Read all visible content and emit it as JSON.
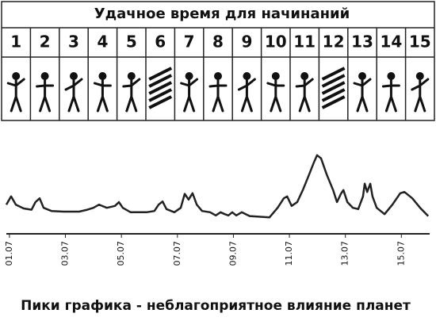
{
  "header": {
    "title": "Удачное время для начинаний"
  },
  "table": {
    "numbers": [
      1,
      2,
      3,
      4,
      5,
      6,
      7,
      8,
      9,
      10,
      11,
      12,
      13,
      14,
      15
    ]
  },
  "chart_data": {
    "type": "line",
    "color": "#222222",
    "caption": "Пики графика - неблагоприятное влияние планет",
    "xlim": [
      0.72,
      16.18
    ],
    "ylim": [
      0,
      100
    ],
    "xticks": [
      {
        "value": 1,
        "label": "01.07"
      },
      {
        "value": 3,
        "label": "03.07"
      },
      {
        "value": 5,
        "label": "05.07"
      },
      {
        "value": 7,
        "label": "07.07"
      },
      {
        "value": 9,
        "label": "09.07"
      },
      {
        "value": 11,
        "label": "11.07"
      },
      {
        "value": 13,
        "label": "13.07"
      },
      {
        "value": 15,
        "label": "15.07"
      }
    ],
    "x": [
      0.89,
      1.06,
      1.23,
      1.51,
      1.79,
      1.93,
      2.08,
      2.22,
      2.5,
      2.93,
      3.49,
      3.78,
      4.0,
      4.2,
      4.48,
      4.77,
      4.91,
      5.05,
      5.33,
      5.9,
      6.18,
      6.33,
      6.47,
      6.61,
      6.89,
      7.12,
      7.26,
      7.4,
      7.54,
      7.69,
      7.88,
      8.17,
      8.37,
      8.54,
      8.69,
      8.82,
      8.96,
      9.1,
      9.3,
      9.58,
      10.29,
      10.58,
      10.8,
      10.92,
      11.08,
      11.28,
      11.48,
      11.71,
      11.88,
      11.99,
      12.13,
      12.33,
      12.56,
      12.7,
      12.84,
      12.93,
      13.07,
      13.27,
      13.46,
      13.63,
      13.69,
      13.78,
      13.89,
      13.97,
      14.12,
      14.4,
      14.68,
      14.96,
      15.11,
      15.39,
      15.67,
      15.96
    ],
    "values": [
      21,
      34,
      21,
      15,
      13,
      25,
      31,
      16,
      11,
      10,
      10,
      13,
      16,
      21,
      16,
      19,
      25,
      16,
      9,
      9,
      11,
      21,
      26,
      14,
      9,
      16,
      38,
      29,
      39,
      21,
      11,
      9,
      4,
      9,
      6,
      4,
      9,
      4,
      9,
      3,
      1,
      16,
      31,
      34,
      19,
      25,
      44,
      69,
      88,
      99,
      94,
      69,
      44,
      25,
      38,
      44,
      25,
      16,
      14,
      34,
      54,
      41,
      54,
      34,
      16,
      6,
      21,
      39,
      41,
      31,
      16,
      3
    ]
  }
}
